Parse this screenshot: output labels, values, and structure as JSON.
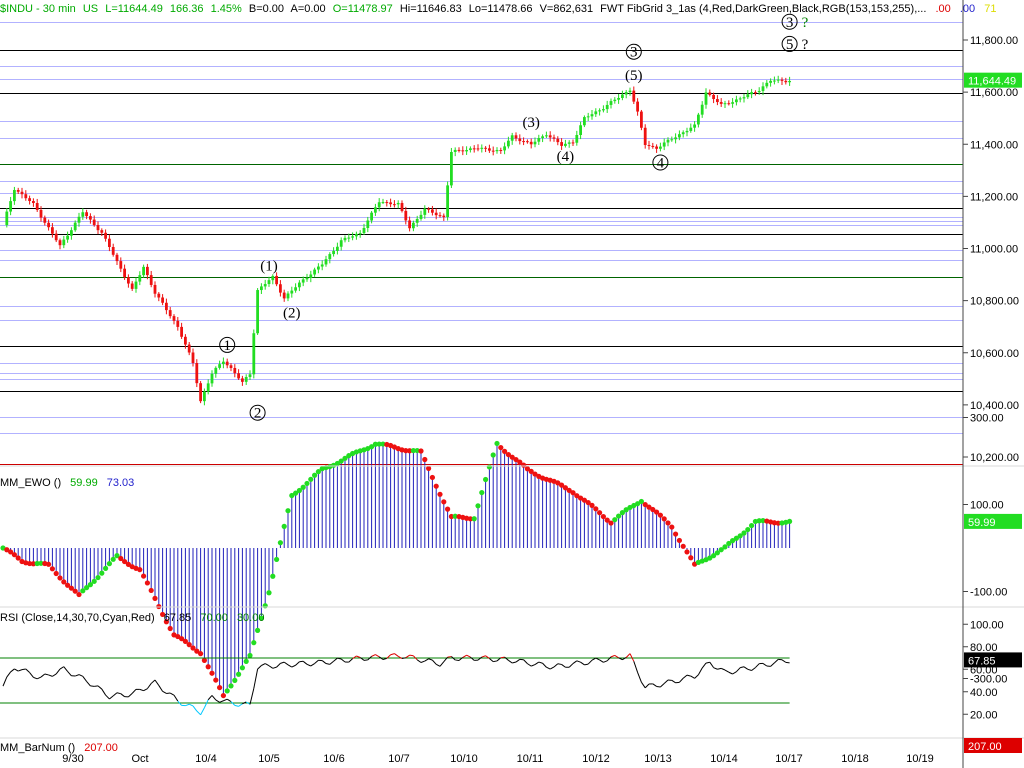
{
  "header": {
    "symbol": "$INDU - 30 min",
    "region": "US",
    "last": "L=11644.49",
    "change": "166.36",
    "change_pct": "1.45%",
    "bid": "B=0.00",
    "ask": "A=0.00",
    "open": "O=11478.97",
    "high": "Hi=11646.83",
    "low": "Lo=11478.66",
    "volume": "V=862,631",
    "study": "FWT FibGrid 3_1as (4,Red,DarkGreen,Black,RGB(153,153,255),...",
    "v1": ".00",
    "v2": ".00",
    "v3": "71"
  },
  "colors": {
    "up": "#22dd22",
    "down": "#ee1111",
    "black_line": "#000000",
    "green_line": "#006400",
    "blue_line": "#9999ff",
    "red_line": "#cc0000",
    "histogram": "#2222bb",
    "rsi_green": "#008000",
    "rsi_cyan": "#00c8ff",
    "rsi_red": "#dd0000"
  },
  "chart_data": [
    {
      "type": "candlestick",
      "name": "price",
      "last_value_label": "11,644.49",
      "y_ticks": [
        "11,800.00",
        "11,600.00",
        "11,400.00",
        "11,200.00",
        "11,000.00",
        "10,800.00",
        "10,600.00",
        "10,400.00",
        "10,200.00"
      ],
      "y_tick_values": [
        11800,
        11600,
        11400,
        11200,
        11000,
        10800,
        10600,
        10400,
        10200
      ],
      "ylim": [
        10150,
        11920
      ],
      "x_labels": [
        "9/30",
        "Oct",
        "10/4",
        "10/5",
        "10/6",
        "10/7",
        "10/10",
        "10/11",
        "10/12",
        "10/13",
        "10/14",
        "10/17",
        "10/18",
        "10/19"
      ],
      "grid_lines": [
        {
          "value": 11870,
          "color": "blue"
        },
        {
          "value": 11763,
          "color": "black"
        },
        {
          "value": 11700,
          "color": "blue"
        },
        {
          "value": 11652,
          "color": "blue"
        },
        {
          "value": 11595,
          "color": "black"
        },
        {
          "value": 11490,
          "color": "blue"
        },
        {
          "value": 11425,
          "color": "blue"
        },
        {
          "value": 11325,
          "color": "green"
        },
        {
          "value": 11258,
          "color": "blue"
        },
        {
          "value": 11213,
          "color": "blue"
        },
        {
          "value": 11155,
          "color": "black"
        },
        {
          "value": 11120,
          "color": "blue"
        },
        {
          "value": 11105,
          "color": "blue"
        },
        {
          "value": 11090,
          "color": "blue"
        },
        {
          "value": 11055,
          "color": "black"
        },
        {
          "value": 10993,
          "color": "blue"
        },
        {
          "value": 10955,
          "color": "blue"
        },
        {
          "value": 10892,
          "color": "green"
        },
        {
          "value": 10780,
          "color": "blue"
        },
        {
          "value": 10725,
          "color": "blue"
        },
        {
          "value": 10625,
          "color": "black"
        },
        {
          "value": 10560,
          "color": "blue"
        },
        {
          "value": 10523,
          "color": "blue"
        },
        {
          "value": 10498,
          "color": "blue"
        },
        {
          "value": 10455,
          "color": "black"
        },
        {
          "value": 10355,
          "color": "blue"
        },
        {
          "value": 10293,
          "color": "blue"
        },
        {
          "value": 10175,
          "color": "red"
        }
      ],
      "anchors": [
        {
          "i": 0,
          "v": 11090
        },
        {
          "i": 3,
          "v": 11230
        },
        {
          "i": 8,
          "v": 11170
        },
        {
          "i": 15,
          "v": 11010
        },
        {
          "i": 21,
          "v": 11140
        },
        {
          "i": 26,
          "v": 11060
        },
        {
          "i": 30,
          "v": 10950
        },
        {
          "i": 34,
          "v": 10840
        },
        {
          "i": 37,
          "v": 10930
        },
        {
          "i": 40,
          "v": 10830
        },
        {
          "i": 46,
          "v": 10700
        },
        {
          "i": 50,
          "v": 10560
        },
        {
          "i": 52,
          "v": 10415
        },
        {
          "i": 55,
          "v": 10520
        },
        {
          "i": 58,
          "v": 10570
        },
        {
          "i": 60,
          "v": 10540
        },
        {
          "i": 63,
          "v": 10485
        },
        {
          "i": 65,
          "v": 10520
        },
        {
          "i": 67,
          "v": 10840
        },
        {
          "i": 71,
          "v": 10890
        },
        {
          "i": 74,
          "v": 10810
        },
        {
          "i": 79,
          "v": 10880
        },
        {
          "i": 84,
          "v": 10940
        },
        {
          "i": 89,
          "v": 11030
        },
        {
          "i": 94,
          "v": 11060
        },
        {
          "i": 99,
          "v": 11180
        },
        {
          "i": 104,
          "v": 11170
        },
        {
          "i": 107,
          "v": 11080
        },
        {
          "i": 111,
          "v": 11150
        },
        {
          "i": 116,
          "v": 11120
        },
        {
          "i": 118,
          "v": 11370
        },
        {
          "i": 124,
          "v": 11385
        },
        {
          "i": 131,
          "v": 11375
        },
        {
          "i": 134,
          "v": 11430
        },
        {
          "i": 139,
          "v": 11400
        },
        {
          "i": 143,
          "v": 11440
        },
        {
          "i": 147,
          "v": 11395
        },
        {
          "i": 150,
          "v": 11410
        },
        {
          "i": 153,
          "v": 11500
        },
        {
          "i": 158,
          "v": 11540
        },
        {
          "i": 163,
          "v": 11590
        },
        {
          "i": 165,
          "v": 11610
        },
        {
          "i": 167,
          "v": 11520
        },
        {
          "i": 169,
          "v": 11400
        },
        {
          "i": 172,
          "v": 11385
        },
        {
          "i": 177,
          "v": 11430
        },
        {
          "i": 182,
          "v": 11470
        },
        {
          "i": 185,
          "v": 11600
        },
        {
          "i": 189,
          "v": 11550
        },
        {
          "i": 194,
          "v": 11575
        },
        {
          "i": 199,
          "v": 11610
        },
        {
          "i": 202,
          "v": 11644
        }
      ],
      "wave_labels": [
        {
          "text": "(1)",
          "i": 70,
          "v": 10935
        },
        {
          "text": "(2)",
          "i": 76,
          "v": 10755
        },
        {
          "text": "(3)",
          "i": 139,
          "v": 11485
        },
        {
          "text": "(4)",
          "i": 148,
          "v": 11355
        },
        {
          "text": "(5)",
          "i": 166,
          "v": 11665
        },
        {
          "text": "3",
          "i": 166,
          "v": 11755,
          "circle": true
        },
        {
          "text": "4",
          "i": 173,
          "v": 11330,
          "circle": true
        },
        {
          "text": "1",
          "i": 59,
          "v": 10630,
          "circle": true
        },
        {
          "text": "2",
          "i": 67,
          "v": 10370,
          "circle": true
        },
        {
          "text": "3",
          "i": 207,
          "v": 11870,
          "circle": true,
          "q": "?",
          "qcolor": "#008000"
        },
        {
          "text": "5",
          "i": 207,
          "v": 11785,
          "circle": true,
          "q": "?",
          "qcolor": "#000000"
        }
      ]
    },
    {
      "type": "bar",
      "name": "EWO",
      "label": "MM_EWO ()",
      "value1": "59.99",
      "value2": "73.03",
      "last_value_label": "59.99",
      "y_ticks": [
        "300.00",
        "100.00",
        "-100.00",
        "-300.00"
      ],
      "y_tick_values": [
        300,
        100,
        -100,
        -300
      ],
      "ylim": [
        -430,
        430
      ],
      "anchors": [
        {
          "i": 0,
          "v": 0
        },
        {
          "i": 5,
          "v": -30
        },
        {
          "i": 12,
          "v": -40
        },
        {
          "i": 20,
          "v": -110
        },
        {
          "i": 30,
          "v": -20
        },
        {
          "i": 36,
          "v": -50
        },
        {
          "i": 45,
          "v": -200
        },
        {
          "i": 52,
          "v": -240
        },
        {
          "i": 58,
          "v": -340
        },
        {
          "i": 65,
          "v": -250
        },
        {
          "i": 70,
          "v": -100
        },
        {
          "i": 76,
          "v": 120
        },
        {
          "i": 84,
          "v": 180
        },
        {
          "i": 98,
          "v": 240
        },
        {
          "i": 110,
          "v": 220
        },
        {
          "i": 118,
          "v": 70
        },
        {
          "i": 124,
          "v": 70
        },
        {
          "i": 130,
          "v": 240
        },
        {
          "i": 138,
          "v": 180
        },
        {
          "i": 150,
          "v": 130
        },
        {
          "i": 160,
          "v": 60
        },
        {
          "i": 168,
          "v": 110
        },
        {
          "i": 176,
          "v": 50
        },
        {
          "i": 182,
          "v": -40
        },
        {
          "i": 190,
          "v": 0
        },
        {
          "i": 198,
          "v": 60
        },
        {
          "i": 206,
          "v": 60
        }
      ]
    },
    {
      "type": "line",
      "name": "RSI",
      "label": "RSI (Close,14,30,70,Cyan,Red)",
      "value": "67.85",
      "upper": "70.00",
      "lower": "30.00",
      "last_value_label": "67.85",
      "y_ticks": [
        "100.00",
        "80.00",
        "60.00",
        "40.00",
        "20.00"
      ],
      "y_tick_values": [
        100,
        80,
        60,
        40,
        20
      ],
      "overbought": 70,
      "oversold": 30,
      "ylim": [
        -5,
        105
      ],
      "anchors": [
        {
          "i": 0,
          "v": 45
        },
        {
          "i": 3,
          "v": 62
        },
        {
          "i": 10,
          "v": 52
        },
        {
          "i": 16,
          "v": 60
        },
        {
          "i": 22,
          "v": 50
        },
        {
          "i": 28,
          "v": 36
        },
        {
          "i": 34,
          "v": 38
        },
        {
          "i": 40,
          "v": 48
        },
        {
          "i": 46,
          "v": 32
        },
        {
          "i": 52,
          "v": 22
        },
        {
          "i": 55,
          "v": 35
        },
        {
          "i": 60,
          "v": 30
        },
        {
          "i": 65,
          "v": 28
        },
        {
          "i": 67,
          "v": 62
        },
        {
          "i": 74,
          "v": 64
        },
        {
          "i": 84,
          "v": 66
        },
        {
          "i": 95,
          "v": 70
        },
        {
          "i": 105,
          "v": 72
        },
        {
          "i": 115,
          "v": 65
        },
        {
          "i": 118,
          "v": 70
        },
        {
          "i": 125,
          "v": 70
        },
        {
          "i": 134,
          "v": 68
        },
        {
          "i": 145,
          "v": 62
        },
        {
          "i": 153,
          "v": 66
        },
        {
          "i": 165,
          "v": 72
        },
        {
          "i": 169,
          "v": 44
        },
        {
          "i": 175,
          "v": 48
        },
        {
          "i": 182,
          "v": 54
        },
        {
          "i": 186,
          "v": 66
        },
        {
          "i": 190,
          "v": 57
        },
        {
          "i": 198,
          "v": 62
        },
        {
          "i": 206,
          "v": 67.85
        }
      ]
    },
    {
      "type": "indicator",
      "name": "BarNum",
      "label": "MM_BarNum ()",
      "value": "207.00",
      "last_value_label": "207.00"
    }
  ]
}
